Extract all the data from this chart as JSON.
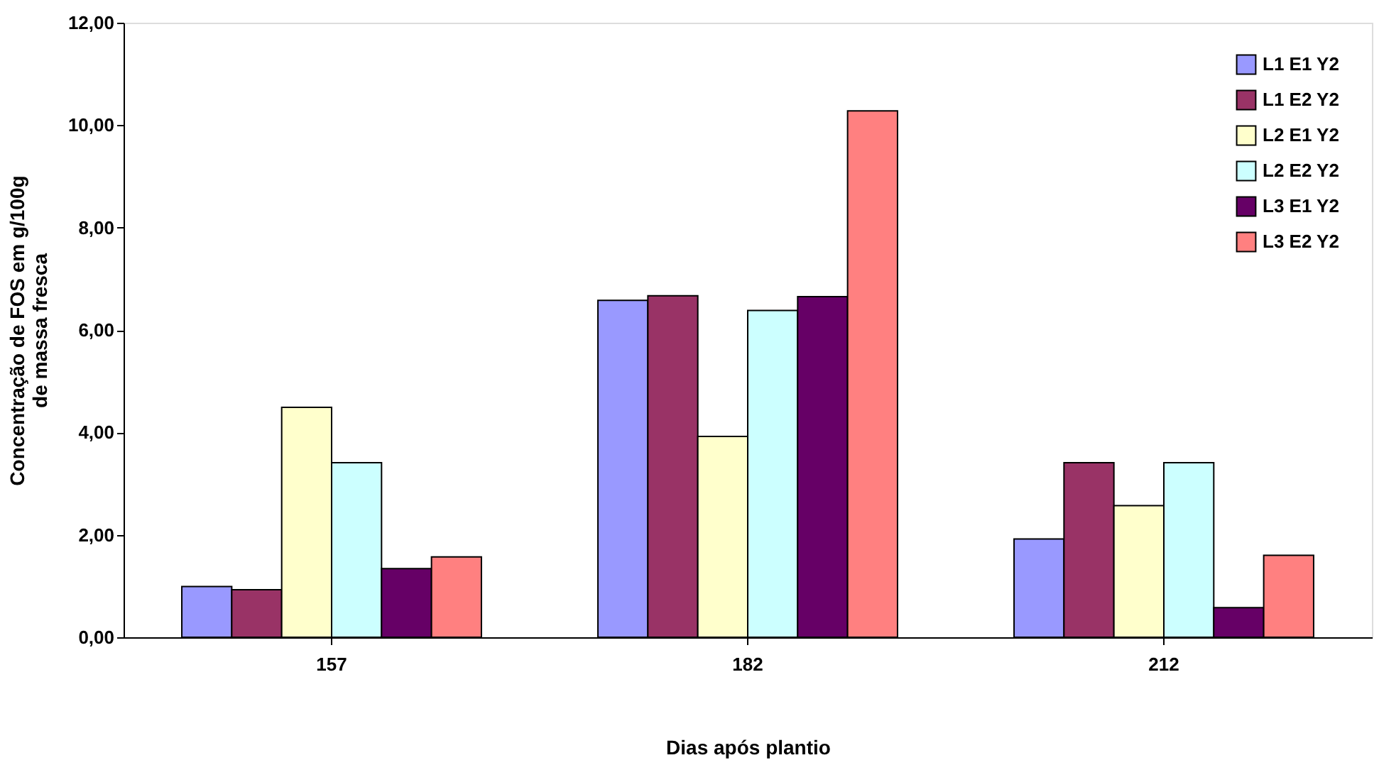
{
  "chart_data": {
    "type": "bar",
    "xlabel": "Dias após plantio",
    "ylabel": "Concentração de FOS em g/100g de massa fresca",
    "categories": [
      "157",
      "182",
      "212"
    ],
    "series": [
      {
        "name": "L1 E1 Y2",
        "color": "#9999ff",
        "values": [
          0.99,
          6.58,
          1.92
        ]
      },
      {
        "name": "L1 E2 Y2",
        "color": "#993366",
        "values": [
          0.93,
          6.67,
          3.41
        ]
      },
      {
        "name": "L2 E1 Y2",
        "color": "#ffffcc",
        "values": [
          4.49,
          3.92,
          2.57
        ]
      },
      {
        "name": "L2 E2 Y2",
        "color": "#ccffff",
        "values": [
          3.41,
          6.38,
          3.41
        ]
      },
      {
        "name": "L3 E1 Y2",
        "color": "#660066",
        "values": [
          1.34,
          6.65,
          0.58
        ]
      },
      {
        "name": "L3 E2 Y2",
        "color": "#ff8080",
        "values": [
          1.57,
          10.28,
          1.6
        ]
      }
    ],
    "ylim": [
      0,
      12
    ],
    "yticks": [
      {
        "value": 0,
        "label": "0,00"
      },
      {
        "value": 2,
        "label": "2,00"
      },
      {
        "value": 4,
        "label": "4,00"
      },
      {
        "value": 6,
        "label": "6,00"
      },
      {
        "value": 8,
        "label": "8,00"
      },
      {
        "value": 10,
        "label": "10,00"
      },
      {
        "value": 12,
        "label": "12,00"
      }
    ],
    "grid": false,
    "legend": "top right"
  }
}
